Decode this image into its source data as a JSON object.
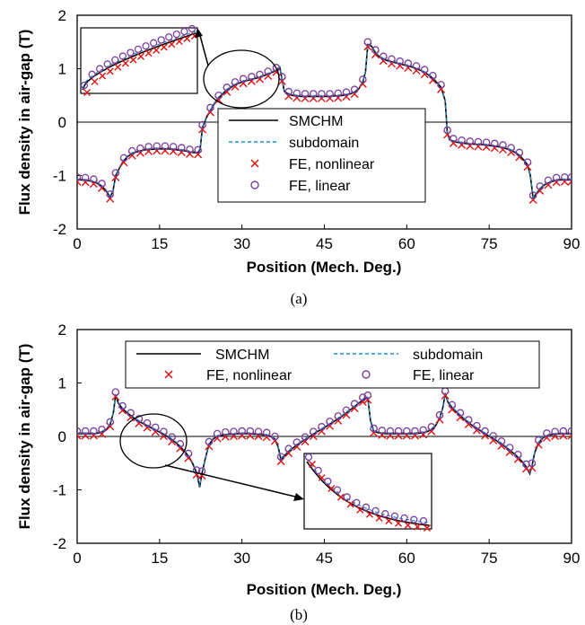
{
  "chart_data": [
    {
      "type": "line",
      "caption": "(a)",
      "xlabel": "Position (Mech. Deg.)",
      "ylabel": "Flux density in air-gap (T)",
      "xlim": [
        0,
        90
      ],
      "ylim": [
        -2,
        2
      ],
      "xticks": [
        "0",
        "15",
        "30",
        "45",
        "60",
        "75",
        "90"
      ],
      "yticks": [
        "-2",
        "-1",
        "0",
        "1",
        "2"
      ],
      "legend_position": "lower-right",
      "legend_layout": "one-column",
      "series": [
        {
          "name": "SMCHM",
          "style": "solid",
          "color": "#000000"
        },
        {
          "name": "subdomain",
          "style": "dashed",
          "color": "#1f8fd0"
        },
        {
          "name": "FE, nonlinear",
          "style": "x-marker",
          "color": "#e01010"
        },
        {
          "name": "FE, linear",
          "style": "o-marker",
          "color": "#7a3fa0"
        }
      ],
      "points": [
        [
          0,
          -1.08
        ],
        [
          0.75,
          -1.08
        ],
        [
          1.5,
          -1.09
        ],
        [
          2.25,
          -1.1
        ],
        [
          3,
          -1.12
        ],
        [
          3.75,
          -1.15
        ],
        [
          4.5,
          -1.2
        ],
        [
          5.25,
          -1.28
        ],
        [
          6,
          -1.4
        ],
        [
          6.5,
          -1.3
        ],
        [
          7,
          -1.0
        ],
        [
          7.75,
          -0.85
        ],
        [
          8.5,
          -0.72
        ],
        [
          9.25,
          -0.64
        ],
        [
          10,
          -0.59
        ],
        [
          10.75,
          -0.56
        ],
        [
          11.5,
          -0.54
        ],
        [
          12.25,
          -0.52
        ],
        [
          13,
          -0.51
        ],
        [
          13.75,
          -0.51
        ],
        [
          14.5,
          -0.5
        ],
        [
          15.25,
          -0.5
        ],
        [
          16,
          -0.5
        ],
        [
          16.75,
          -0.5
        ],
        [
          17.5,
          -0.51
        ],
        [
          18.25,
          -0.52
        ],
        [
          19,
          -0.53
        ],
        [
          19.75,
          -0.54
        ],
        [
          20.5,
          -0.56
        ],
        [
          21.25,
          -0.57
        ],
        [
          22,
          -0.57
        ],
        [
          22.4,
          -0.5
        ],
        [
          22.8,
          -0.1
        ],
        [
          23.5,
          0.08
        ],
        [
          24.25,
          0.22
        ],
        [
          25,
          0.35
        ],
        [
          25.75,
          0.45
        ],
        [
          26.5,
          0.53
        ],
        [
          27.25,
          0.6
        ],
        [
          28,
          0.65
        ],
        [
          28.75,
          0.7
        ],
        [
          29.5,
          0.73
        ],
        [
          30.25,
          0.76
        ],
        [
          31,
          0.78
        ],
        [
          31.75,
          0.8
        ],
        [
          32.5,
          0.82
        ],
        [
          33.25,
          0.84
        ],
        [
          34,
          0.87
        ],
        [
          34.75,
          0.9
        ],
        [
          35.5,
          0.93
        ],
        [
          36.25,
          0.97
        ],
        [
          36.9,
          1.02
        ],
        [
          37.3,
          0.8
        ],
        [
          37.7,
          0.58
        ],
        [
          38.5,
          0.52
        ],
        [
          39.25,
          0.5
        ],
        [
          40,
          0.49
        ],
        [
          40.75,
          0.48
        ],
        [
          41.5,
          0.48
        ],
        [
          42.25,
          0.48
        ],
        [
          43,
          0.48
        ],
        [
          43.75,
          0.48
        ],
        [
          44.5,
          0.48
        ],
        [
          45.25,
          0.48
        ],
        [
          46,
          0.48
        ],
        [
          46.75,
          0.49
        ],
        [
          47.5,
          0.49
        ],
        [
          48.25,
          0.5
        ],
        [
          49,
          0.51
        ],
        [
          49.75,
          0.53
        ],
        [
          50.5,
          0.56
        ],
        [
          51.25,
          0.62
        ],
        [
          52,
          0.75
        ],
        [
          52.5,
          0.95
        ],
        [
          52.9,
          1.45
        ],
        [
          53.6,
          1.42
        ],
        [
          54.3,
          1.3
        ],
        [
          55,
          1.22
        ],
        [
          55.75,
          1.18
        ],
        [
          56.5,
          1.15
        ],
        [
          57.25,
          1.13
        ],
        [
          58,
          1.11
        ],
        [
          58.75,
          1.09
        ],
        [
          59.5,
          1.07
        ],
        [
          60.25,
          1.05
        ],
        [
          61,
          1.03
        ],
        [
          61.75,
          1.0
        ],
        [
          62.5,
          0.97
        ],
        [
          63.25,
          0.93
        ],
        [
          64,
          0.88
        ],
        [
          64.75,
          0.82
        ],
        [
          65.5,
          0.74
        ],
        [
          66.25,
          0.65
        ],
        [
          67,
          0.4
        ],
        [
          67.4,
          -0.2
        ],
        [
          67.8,
          -0.33
        ],
        [
          68.5,
          -0.36
        ],
        [
          69.25,
          -0.38
        ],
        [
          70,
          -0.39
        ],
        [
          70.75,
          -0.4
        ],
        [
          71.5,
          -0.41
        ],
        [
          72.25,
          -0.41
        ],
        [
          73,
          -0.42
        ],
        [
          73.75,
          -0.42
        ],
        [
          74.5,
          -0.43
        ],
        [
          75.25,
          -0.44
        ],
        [
          76,
          -0.45
        ],
        [
          76.75,
          -0.46
        ],
        [
          77.5,
          -0.48
        ],
        [
          78.25,
          -0.5
        ],
        [
          79,
          -0.53
        ],
        [
          79.75,
          -0.57
        ],
        [
          80.5,
          -0.62
        ],
        [
          81.25,
          -0.7
        ],
        [
          82,
          -0.8
        ],
        [
          82.5,
          -1.0
        ],
        [
          83,
          -1.42
        ],
        [
          83.5,
          -1.35
        ],
        [
          84.25,
          -1.25
        ],
        [
          85,
          -1.18
        ],
        [
          85.75,
          -1.14
        ],
        [
          86.5,
          -1.11
        ],
        [
          87.25,
          -1.09
        ],
        [
          88,
          -1.08
        ],
        [
          88.75,
          -1.08
        ],
        [
          89.5,
          -1.08
        ],
        [
          90,
          -1.08
        ]
      ]
    },
    {
      "type": "line",
      "caption": "(b)",
      "xlabel": "Position (Mech. Deg.)",
      "ylabel": "Flux density in air-gap (T)",
      "xlim": [
        0,
        90
      ],
      "ylim": [
        -2,
        2
      ],
      "xticks": [
        "0",
        "15",
        "30",
        "45",
        "60",
        "75",
        "90"
      ],
      "yticks": [
        "-2",
        "-1",
        "0",
        "1",
        "2"
      ],
      "legend_position": "top",
      "legend_layout": "two-column",
      "series": [
        {
          "name": "SMCHM",
          "style": "solid",
          "color": "#000000"
        },
        {
          "name": "subdomain",
          "style": "dashed",
          "color": "#1f8fd0"
        },
        {
          "name": "FE, nonlinear",
          "style": "x-marker",
          "color": "#e01010"
        },
        {
          "name": "FE, linear",
          "style": "o-marker",
          "color": "#7a3fa0"
        }
      ],
      "points": [
        [
          0,
          0.05
        ],
        [
          0.75,
          0.05
        ],
        [
          1.5,
          0.05
        ],
        [
          2.25,
          0.05
        ],
        [
          3,
          0.05
        ],
        [
          3.75,
          0.06
        ],
        [
          4.5,
          0.08
        ],
        [
          5.25,
          0.12
        ],
        [
          6,
          0.22
        ],
        [
          6.6,
          0.45
        ],
        [
          7,
          0.78
        ],
        [
          7.5,
          0.62
        ],
        [
          8.25,
          0.52
        ],
        [
          9,
          0.45
        ],
        [
          9.75,
          0.39
        ],
        [
          10.5,
          0.33
        ],
        [
          11.25,
          0.28
        ],
        [
          12,
          0.24
        ],
        [
          12.75,
          0.2
        ],
        [
          13.5,
          0.16
        ],
        [
          14.25,
          0.12
        ],
        [
          15,
          0.08
        ],
        [
          15.75,
          0.04
        ],
        [
          16.5,
          -0.01
        ],
        [
          17.25,
          -0.06
        ],
        [
          18,
          -0.12
        ],
        [
          18.75,
          -0.19
        ],
        [
          19.5,
          -0.27
        ],
        [
          20.25,
          -0.37
        ],
        [
          21,
          -0.5
        ],
        [
          21.75,
          -0.68
        ],
        [
          22.3,
          -0.95
        ],
        [
          22.7,
          -0.7
        ],
        [
          23.25,
          -0.45
        ],
        [
          24,
          -0.15
        ],
        [
          24.75,
          -0.05
        ],
        [
          25.5,
          0.0
        ],
        [
          26.25,
          0.02
        ],
        [
          27,
          0.03
        ],
        [
          27.75,
          0.04
        ],
        [
          28.5,
          0.04
        ],
        [
          29.25,
          0.05
        ],
        [
          30,
          0.05
        ],
        [
          30.75,
          0.05
        ],
        [
          31.5,
          0.05
        ],
        [
          32.25,
          0.04
        ],
        [
          33,
          0.04
        ],
        [
          33.75,
          0.03
        ],
        [
          34.5,
          0.02
        ],
        [
          35.25,
          0.0
        ],
        [
          36,
          -0.05
        ],
        [
          36.6,
          -0.2
        ],
        [
          37.1,
          -0.43
        ],
        [
          37.75,
          -0.36
        ],
        [
          38.5,
          -0.28
        ],
        [
          39.25,
          -0.22
        ],
        [
          40,
          -0.16
        ],
        [
          40.75,
          -0.11
        ],
        [
          41.5,
          -0.06
        ],
        [
          42.25,
          -0.01
        ],
        [
          43,
          0.04
        ],
        [
          43.75,
          0.09
        ],
        [
          44.5,
          0.13
        ],
        [
          45.25,
          0.18
        ],
        [
          46,
          0.23
        ],
        [
          46.75,
          0.28
        ],
        [
          47.5,
          0.33
        ],
        [
          48.25,
          0.38
        ],
        [
          49,
          0.44
        ],
        [
          49.75,
          0.5
        ],
        [
          50.5,
          0.56
        ],
        [
          51.25,
          0.62
        ],
        [
          52,
          0.68
        ],
        [
          52.5,
          0.73
        ],
        [
          52.9,
          0.72
        ],
        [
          53.4,
          0.3
        ],
        [
          54,
          0.1
        ],
        [
          54.75,
          0.07
        ],
        [
          55.5,
          0.06
        ],
        [
          56.25,
          0.05
        ],
        [
          57,
          0.05
        ],
        [
          57.75,
          0.05
        ],
        [
          58.5,
          0.05
        ],
        [
          59.25,
          0.05
        ],
        [
          60,
          0.05
        ],
        [
          60.75,
          0.05
        ],
        [
          61.5,
          0.05
        ],
        [
          62.25,
          0.06
        ],
        [
          63,
          0.07
        ],
        [
          63.75,
          0.09
        ],
        [
          64.5,
          0.13
        ],
        [
          65.25,
          0.2
        ],
        [
          66,
          0.35
        ],
        [
          66.6,
          0.55
        ],
        [
          67,
          0.8
        ],
        [
          67.5,
          0.64
        ],
        [
          68.25,
          0.54
        ],
        [
          69,
          0.46
        ],
        [
          69.75,
          0.39
        ],
        [
          70.5,
          0.32
        ],
        [
          71.25,
          0.26
        ],
        [
          72,
          0.2
        ],
        [
          72.75,
          0.15
        ],
        [
          73.5,
          0.1
        ],
        [
          74.25,
          0.05
        ],
        [
          75,
          0.0
        ],
        [
          75.75,
          -0.04
        ],
        [
          76.5,
          -0.09
        ],
        [
          77.25,
          -0.14
        ],
        [
          78,
          -0.2
        ],
        [
          78.75,
          -0.26
        ],
        [
          79.5,
          -0.32
        ],
        [
          80.25,
          -0.39
        ],
        [
          81,
          -0.47
        ],
        [
          81.75,
          -0.57
        ],
        [
          82.4,
          -0.7
        ],
        [
          82.8,
          -0.55
        ],
        [
          83.3,
          -0.3
        ],
        [
          84,
          -0.12
        ],
        [
          84.75,
          -0.03
        ],
        [
          85.5,
          0.01
        ],
        [
          86.25,
          0.03
        ],
        [
          87,
          0.04
        ],
        [
          87.75,
          0.05
        ],
        [
          88.5,
          0.05
        ],
        [
          89.25,
          0.05
        ],
        [
          90,
          0.05
        ]
      ]
    }
  ]
}
